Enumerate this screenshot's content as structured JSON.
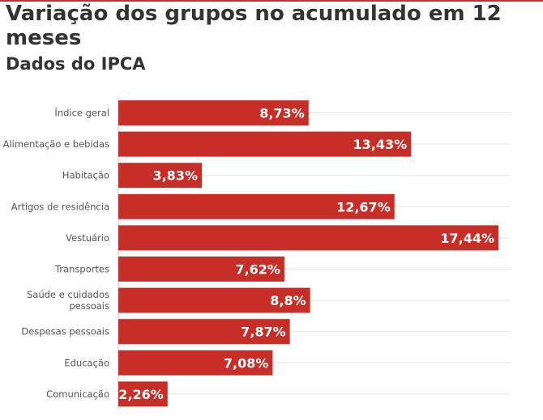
{
  "header": {
    "title": "Variação dos grupos no acumulado em 12 meses",
    "subtitle": "Dados do IPCA"
  },
  "colors": {
    "bar": "#c72e27",
    "accent_rule": "#c4302b",
    "gridline": "#e6e6e6"
  },
  "chart_data": {
    "type": "bar",
    "orientation": "horizontal",
    "title": "Variação dos grupos no acumulado em 12 meses",
    "subtitle": "Dados do IPCA",
    "xlabel": "",
    "ylabel": "",
    "xlim": [
      0,
      17.44
    ],
    "grid": true,
    "categories": [
      "Índice geral",
      "Alimentação e bebidas",
      "Habitação",
      "Artigos de residência",
      "Vestuário",
      "Transportes",
      "Saúde e cuidados pessoais",
      "Despesas pessoais",
      "Educação",
      "Comunicação"
    ],
    "values": [
      8.73,
      13.43,
      3.83,
      12.67,
      17.44,
      7.62,
      8.8,
      7.87,
      7.08,
      2.26
    ],
    "value_labels": [
      "8,73%",
      "13,43%",
      "3,83%",
      "12,67%",
      "17,44%",
      "7,62%",
      "8,8%",
      "7,87%",
      "7,08%",
      "2,26%"
    ]
  }
}
